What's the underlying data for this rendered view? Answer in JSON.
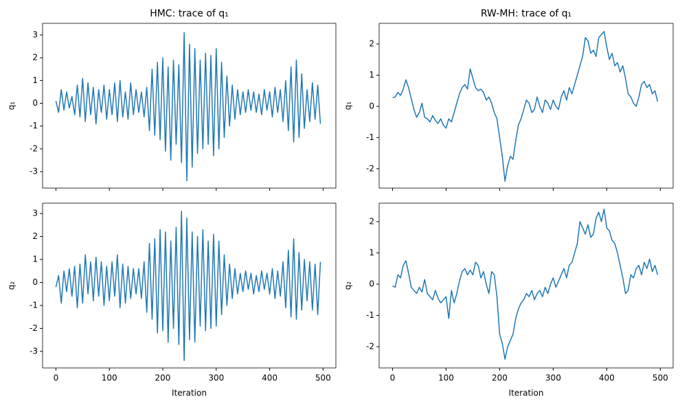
{
  "chart_data": [
    {
      "type": "line",
      "title": "HMC: trace of q₁",
      "ylabel": "q₁",
      "color": "#1f77b4",
      "xlim": [
        -24.95,
        523.95
      ],
      "ylim": [
        -3.72,
        3.51
      ],
      "xticks": [
        0,
        100,
        200,
        300,
        400,
        500
      ],
      "xtick_labels": false,
      "yticks": [
        -3,
        -2,
        -1,
        0,
        1,
        2,
        3
      ],
      "x": [
        0,
        5,
        10,
        15,
        20,
        25,
        30,
        35,
        40,
        45,
        50,
        55,
        60,
        65,
        70,
        75,
        80,
        85,
        90,
        95,
        100,
        105,
        110,
        115,
        120,
        125,
        130,
        135,
        140,
        145,
        150,
        155,
        160,
        165,
        170,
        175,
        180,
        185,
        190,
        195,
        200,
        205,
        210,
        215,
        220,
        225,
        230,
        235,
        240,
        245,
        250,
        255,
        260,
        265,
        270,
        275,
        280,
        285,
        290,
        295,
        300,
        305,
        310,
        315,
        320,
        325,
        330,
        335,
        340,
        345,
        350,
        355,
        360,
        365,
        370,
        375,
        380,
        385,
        390,
        395,
        400,
        405,
        410,
        415,
        420,
        425,
        430,
        435,
        440,
        445,
        450,
        455,
        460,
        465,
        470,
        475,
        480,
        485,
        490,
        495
      ],
      "values": [
        0.1,
        -0.4,
        0.6,
        -0.3,
        0.5,
        -0.2,
        0.3,
        -0.5,
        0.8,
        -0.6,
        1.1,
        -0.8,
        0.9,
        -0.5,
        0.7,
        -0.9,
        0.6,
        -0.4,
        0.8,
        -0.7,
        0.6,
        -0.5,
        0.9,
        -0.8,
        1.0,
        -0.6,
        0.5,
        -0.7,
        0.9,
        -0.5,
        0.6,
        -0.4,
        0.5,
        -0.6,
        0.7,
        -1.2,
        1.5,
        -1.4,
        1.8,
        -1.6,
        2.0,
        -2.1,
        1.6,
        -2.5,
        1.9,
        -1.8,
        1.7,
        -2.6,
        3.1,
        -3.4,
        2.6,
        -2.8,
        2.4,
        -2.2,
        1.9,
        -2.0,
        2.2,
        -1.8,
        2.1,
        -2.3,
        2.4,
        -2.0,
        1.8,
        -1.5,
        1.2,
        -1.0,
        0.8,
        -0.7,
        0.6,
        -0.5,
        0.5,
        -0.4,
        0.6,
        -0.3,
        0.5,
        -0.4,
        0.4,
        -0.5,
        0.6,
        -0.3,
        0.5,
        -0.6,
        0.7,
        -0.4,
        0.6,
        -0.8,
        1.0,
        -1.2,
        1.6,
        -1.7,
        1.9,
        -1.5,
        1.3,
        -1.1,
        0.6,
        -0.8,
        0.9,
        -0.7,
        0.8,
        -0.9
      ]
    },
    {
      "type": "line",
      "title": "RW-MH: trace of q₁",
      "ylabel": "q₁",
      "color": "#1f77b4",
      "xlim": [
        -24.95,
        523.95
      ],
      "ylim": [
        -2.62,
        2.66
      ],
      "xticks": [
        0,
        100,
        200,
        300,
        400,
        500
      ],
      "xtick_labels": false,
      "yticks": [
        -2,
        -1,
        0,
        1,
        2
      ],
      "x": [
        0,
        5,
        10,
        15,
        20,
        25,
        30,
        35,
        40,
        45,
        50,
        55,
        60,
        65,
        70,
        75,
        80,
        85,
        90,
        95,
        100,
        105,
        110,
        115,
        120,
        125,
        130,
        135,
        140,
        145,
        150,
        155,
        160,
        165,
        170,
        175,
        180,
        185,
        190,
        195,
        200,
        205,
        210,
        215,
        220,
        225,
        230,
        235,
        240,
        245,
        250,
        255,
        260,
        265,
        270,
        275,
        280,
        285,
        290,
        295,
        300,
        305,
        310,
        315,
        320,
        325,
        330,
        335,
        340,
        345,
        350,
        355,
        360,
        365,
        370,
        375,
        380,
        385,
        390,
        395,
        400,
        405,
        410,
        415,
        420,
        425,
        430,
        435,
        440,
        445,
        450,
        455,
        460,
        465,
        470,
        475,
        480,
        485,
        490,
        495
      ],
      "values": [
        0.28,
        0.3,
        0.45,
        0.35,
        0.55,
        0.85,
        0.6,
        0.25,
        -0.1,
        -0.35,
        -0.2,
        0.1,
        -0.35,
        -0.4,
        -0.5,
        -0.3,
        -0.45,
        -0.55,
        -0.4,
        -0.6,
        -0.7,
        -0.4,
        -0.5,
        -0.2,
        0.1,
        0.4,
        0.6,
        0.7,
        0.55,
        1.2,
        0.9,
        0.6,
        0.5,
        0.55,
        0.45,
        0.2,
        0.3,
        0.1,
        -0.2,
        -0.4,
        -1.0,
        -1.6,
        -2.4,
        -1.9,
        -1.6,
        -1.7,
        -1.1,
        -0.6,
        -0.4,
        -0.1,
        0.2,
        0.1,
        -0.2,
        -0.1,
        0.3,
        0.0,
        -0.2,
        0.2,
        0.1,
        -0.1,
        0.2,
        0.0,
        -0.1,
        0.3,
        0.5,
        0.2,
        0.6,
        0.4,
        0.7,
        1.0,
        1.3,
        1.6,
        2.2,
        2.1,
        1.7,
        1.8,
        1.6,
        2.2,
        2.3,
        2.4,
        1.9,
        1.5,
        1.7,
        1.3,
        1.4,
        1.1,
        1.3,
        0.9,
        0.4,
        0.3,
        0.1,
        0.0,
        0.3,
        0.7,
        0.8,
        0.6,
        0.7,
        0.4,
        0.5,
        0.15
      ]
    },
    {
      "type": "line",
      "xlabel": "Iteration",
      "ylabel": "q₂",
      "color": "#1f77b4",
      "xlim": [
        -24.95,
        523.95
      ],
      "ylim": [
        -3.72,
        3.45
      ],
      "xticks": [
        0,
        100,
        200,
        300,
        400,
        500
      ],
      "xtick_labels": true,
      "yticks": [
        -3,
        -2,
        -1,
        0,
        1,
        2,
        3
      ],
      "x": [
        0,
        5,
        10,
        15,
        20,
        25,
        30,
        35,
        40,
        45,
        50,
        55,
        60,
        65,
        70,
        75,
        80,
        85,
        90,
        95,
        100,
        105,
        110,
        115,
        120,
        125,
        130,
        135,
        140,
        145,
        150,
        155,
        160,
        165,
        170,
        175,
        180,
        185,
        190,
        195,
        200,
        205,
        210,
        215,
        220,
        225,
        230,
        235,
        240,
        245,
        250,
        255,
        260,
        265,
        270,
        275,
        280,
        285,
        290,
        295,
        300,
        305,
        310,
        315,
        320,
        325,
        330,
        335,
        340,
        345,
        350,
        355,
        360,
        365,
        370,
        375,
        380,
        385,
        390,
        395,
        400,
        405,
        410,
        415,
        420,
        425,
        430,
        435,
        440,
        445,
        450,
        455,
        460,
        465,
        470,
        475,
        480,
        485,
        490,
        495
      ],
      "values": [
        -0.2,
        0.3,
        -0.9,
        0.5,
        -0.4,
        0.6,
        -0.6,
        0.7,
        -1.1,
        0.8,
        -0.9,
        1.2,
        -0.5,
        0.9,
        -0.8,
        1.1,
        -0.6,
        0.9,
        -1.0,
        0.7,
        -0.8,
        0.9,
        -0.6,
        1.2,
        -1.1,
        0.8,
        -0.9,
        0.7,
        -0.7,
        0.6,
        -0.5,
        0.6,
        -0.7,
        0.9,
        -1.3,
        1.7,
        -1.6,
        1.9,
        -2.2,
        2.3,
        -2.1,
        2.2,
        -2.6,
        1.8,
        -2.0,
        2.4,
        -2.7,
        3.1,
        -3.4,
        2.8,
        -2.5,
        2.2,
        -2.6,
        2.0,
        -1.9,
        2.3,
        -2.1,
        1.8,
        -2.0,
        2.1,
        -1.9,
        1.8,
        -1.4,
        1.2,
        -1.0,
        0.8,
        -0.7,
        0.6,
        -0.5,
        0.4,
        -0.4,
        0.5,
        -0.3,
        0.4,
        -0.5,
        0.3,
        -0.4,
        0.5,
        -0.3,
        0.4,
        -0.5,
        0.6,
        -0.7,
        0.5,
        -0.6,
        0.9,
        -1.1,
        1.4,
        -1.5,
        1.9,
        -1.6,
        1.3,
        -1.2,
        1.0,
        -0.8,
        0.9,
        -1.2,
        0.8,
        -1.4,
        0.9
      ]
    },
    {
      "type": "line",
      "xlabel": "Iteration",
      "ylabel": "q₂",
      "color": "#1f77b4",
      "xlim": [
        -24.95,
        523.95
      ],
      "ylim": [
        -2.68,
        2.59
      ],
      "xticks": [
        0,
        100,
        200,
        300,
        400,
        500
      ],
      "xtick_labels": true,
      "yticks": [
        -2,
        -1,
        0,
        1,
        2
      ],
      "x": [
        0,
        5,
        10,
        15,
        20,
        25,
        30,
        35,
        40,
        45,
        50,
        55,
        60,
        65,
        70,
        75,
        80,
        85,
        90,
        95,
        100,
        105,
        110,
        115,
        120,
        125,
        130,
        135,
        140,
        145,
        150,
        155,
        160,
        165,
        170,
        175,
        180,
        185,
        190,
        195,
        200,
        205,
        210,
        215,
        220,
        225,
        230,
        235,
        240,
        245,
        250,
        255,
        260,
        265,
        270,
        275,
        280,
        285,
        290,
        295,
        300,
        305,
        310,
        315,
        320,
        325,
        330,
        335,
        340,
        345,
        350,
        355,
        360,
        365,
        370,
        375,
        380,
        385,
        390,
        395,
        400,
        405,
        410,
        415,
        420,
        425,
        430,
        435,
        440,
        445,
        450,
        455,
        460,
        465,
        470,
        475,
        480,
        485,
        490,
        495
      ],
      "values": [
        -0.05,
        -0.1,
        0.3,
        0.2,
        0.6,
        0.75,
        0.35,
        -0.1,
        -0.2,
        -0.3,
        -0.1,
        -0.25,
        0.15,
        -0.3,
        -0.4,
        -0.5,
        -0.2,
        -0.45,
        -0.6,
        -0.5,
        -0.4,
        -1.1,
        -0.2,
        -0.6,
        -0.3,
        0.1,
        0.4,
        0.5,
        0.3,
        0.45,
        0.3,
        0.7,
        0.6,
        0.2,
        0.4,
        0.0,
        -0.3,
        0.4,
        0.3,
        -0.4,
        -1.6,
        -1.9,
        -2.4,
        -2.0,
        -1.8,
        -1.6,
        -1.1,
        -0.8,
        -0.6,
        -0.5,
        -0.3,
        -0.4,
        -0.2,
        -0.5,
        -0.3,
        -0.2,
        -0.4,
        -0.1,
        -0.3,
        0.0,
        0.2,
        -0.1,
        0.1,
        0.3,
        0.5,
        0.2,
        0.6,
        0.7,
        1.0,
        1.3,
        2.0,
        1.8,
        1.6,
        1.9,
        1.5,
        1.6,
        2.1,
        2.3,
        2.0,
        2.4,
        1.8,
        1.7,
        1.4,
        1.3,
        1.0,
        0.6,
        0.2,
        -0.3,
        -0.2,
        0.3,
        0.2,
        0.5,
        0.6,
        0.3,
        0.7,
        0.5,
        0.8,
        0.4,
        0.6,
        0.3
      ]
    }
  ]
}
